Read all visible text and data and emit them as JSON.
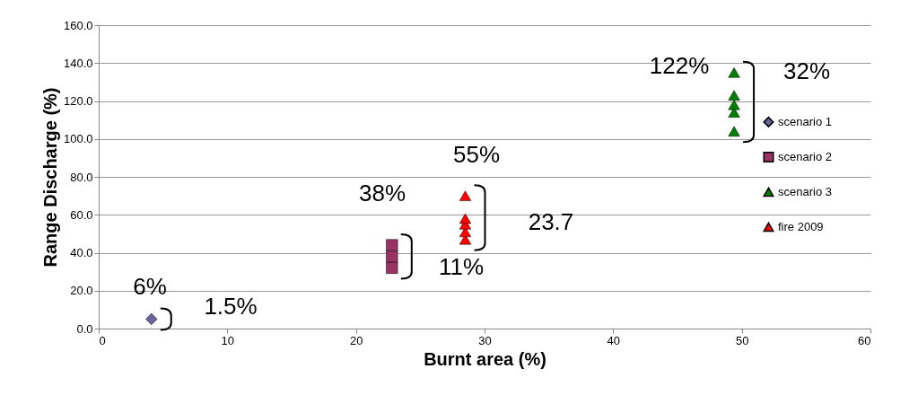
{
  "chart_data": {
    "type": "scatter",
    "xlabel": "Burnt area (%)",
    "ylabel": "Range Discharge (%)",
    "series": [
      {
        "name": "scenario 1",
        "color": "#66669a",
        "marker": "diamond",
        "x": [
          4.1
        ],
        "values": [
          5
        ]
      },
      {
        "name": "scenario 2",
        "color": "#993366",
        "marker": "square",
        "x": [
          22.8,
          22.8,
          22.8
        ],
        "values": [
          32,
          38,
          44
        ]
      },
      {
        "name": "scenario 3",
        "color": "#008000",
        "marker": "triangle",
        "x": [
          49.4,
          49.4,
          49.4,
          49.4,
          49.4
        ],
        "values": [
          104,
          114,
          118,
          123,
          135
        ]
      },
      {
        "name": "fire 2009",
        "color": "#ff0000",
        "marker": "triangle",
        "x": [
          28.5,
          28.5,
          28.5,
          28.5,
          28.5
        ],
        "values": [
          47,
          51,
          55,
          58,
          70
        ]
      }
    ],
    "xlim": [
      0,
      60
    ],
    "xticks": [
      0,
      10,
      20,
      30,
      40,
      50,
      60
    ],
    "ylim": [
      0,
      160
    ],
    "yticks": [
      {
        "value": 0,
        "label": "0.0"
      },
      {
        "value": 20,
        "label": "20.0"
      },
      {
        "value": 40,
        "label": "40.0"
      },
      {
        "value": 60,
        "label": "60.0"
      },
      {
        "value": 80,
        "label": "80.0"
      },
      {
        "value": 100,
        "label": "100.0"
      },
      {
        "value": 120,
        "label": "120.0"
      },
      {
        "value": 140,
        "label": "140.0"
      },
      {
        "value": 160,
        "label": "160.0"
      }
    ],
    "grid": "y",
    "legend": "right",
    "annotations": [
      "6%",
      "1.5%",
      "38%",
      "11%",
      "55%",
      "23.7",
      "122%",
      "32%"
    ]
  }
}
